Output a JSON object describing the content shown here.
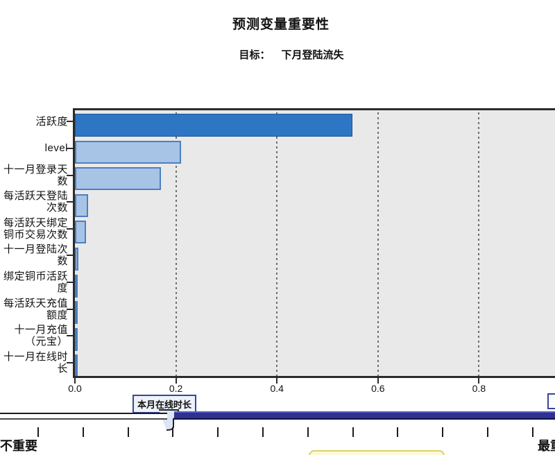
{
  "chart_data": {
    "type": "bar",
    "orientation": "horizontal",
    "title": "预测变量重要性",
    "target_label": "目标：",
    "target_value": "下月登陆流失",
    "categories": [
      "活跃度",
      "level",
      "十一月登录天数",
      "每活跃天登陆次数",
      "每活跃天绑定铜币交易次数",
      "十一月登陆次数",
      "绑定铜币活跃度",
      "每活跃天充值额度",
      "十一月充值（元宝）",
      "十一月在线时长"
    ],
    "display_labels": [
      "活跃度",
      "level",
      "十一月登录天\n数",
      "每活跃天登陆\n次数",
      "每活跃天绑定\n铜币交易次数",
      "十一月登陆次\n数",
      "绑定铜币活跃\n度",
      "每活跃天充值\n额度",
      "十一月充值\n（元宝）",
      "十一月在线时\n长"
    ],
    "values": [
      0.55,
      0.21,
      0.17,
      0.026,
      0.022,
      0.007,
      0.005,
      0.005,
      0.004,
      0.003
    ],
    "xlabel": "",
    "ylabel": "",
    "xlim": [
      0.0,
      0.95
    ],
    "x_ticks": [
      0.0,
      0.2,
      0.4,
      0.6,
      0.8
    ],
    "x_tick_labels": [
      "0.0",
      "0.2",
      "0.4",
      "0.6",
      "0.8"
    ],
    "grid": "dashed-vertical",
    "legend": "none",
    "colors": {
      "bar_primary": "#2d76c4",
      "bar_primary_border": "#1c5693",
      "bar_secondary": "#a7c4e6",
      "bar_secondary_border": "#4c7fc0",
      "plot_background": "#e9e9e9",
      "axis": "#2b2b2b"
    }
  },
  "slider": {
    "tooltip": "本月在线时长",
    "left_label": "不重要",
    "right_label": "最重要",
    "tick_count": 12,
    "thumb_value": 0.2,
    "track_color": "#2e3192",
    "tooltip_border_color": "#36459b"
  }
}
